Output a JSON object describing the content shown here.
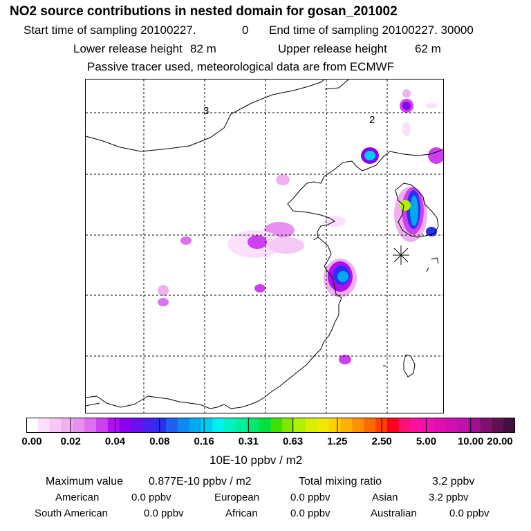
{
  "title": "NO2 source contributions in nested domain for gosan_201002",
  "header": {
    "start_label": "Start time of sampling 20100227.",
    "start_value": "0",
    "end_label": "End time of sampling 20100227. 30000",
    "lower_label": "Lower release height",
    "lower_value": "82 m",
    "upper_label": "Upper release height",
    "upper_value": "62 m",
    "tracer_note": "Passive tracer used, meteorological data are from ECMWF"
  },
  "map": {
    "grid_labels": [
      "3",
      "2"
    ],
    "receptor": "gosan station marker"
  },
  "colorbar": {
    "colors": [
      "#ffffff",
      "#fbe0fb",
      "#f6c8f6",
      "#f0b0f0",
      "#e890f2",
      "#dd70f0",
      "#cc40f0",
      "#b010f0",
      "#8a00f0",
      "#6a10f0",
      "#4a20f0",
      "#2a30f0",
      "#2060f0",
      "#1088f0",
      "#00aaf0",
      "#00ccf0",
      "#00f0f0",
      "#00f0c0",
      "#00f09a",
      "#00e870",
      "#00e040",
      "#40e000",
      "#80e800",
      "#b0f000",
      "#d8f000",
      "#f0e800",
      "#ffd000",
      "#ffb000",
      "#ff9000",
      "#ff6a00",
      "#ff4000",
      "#ff0020",
      "#ff1078",
      "#ff10a0",
      "#f010b0",
      "#e010b0",
      "#d010b0",
      "#c010b0",
      "#a01090",
      "#801070",
      "#601050",
      "#401040"
    ],
    "tick_labels": [
      "0.00",
      "0.02",
      "0.04",
      "0.08",
      "0.16",
      "0.31",
      "0.63",
      "1.25",
      "2.50",
      "5.00",
      "10.00",
      "20.00"
    ],
    "unit": "10E-10 ppbv / m2"
  },
  "summary": {
    "max_label": "Maximum value",
    "max_value": "0.877E-10 ppbv / m2",
    "total_label": "Total mixing ratio",
    "total_value": "3.2 ppbv",
    "regions": [
      {
        "name": "American",
        "value": "0.0 ppbv"
      },
      {
        "name": "European",
        "value": "0.0 ppbv"
      },
      {
        "name": "Asian",
        "value": "3.2 ppbv"
      },
      {
        "name": "South American",
        "value": "0.0 ppbv"
      },
      {
        "name": "African",
        "value": "0.0 ppbv"
      },
      {
        "name": "Australian",
        "value": "0.0 ppbv"
      }
    ]
  }
}
